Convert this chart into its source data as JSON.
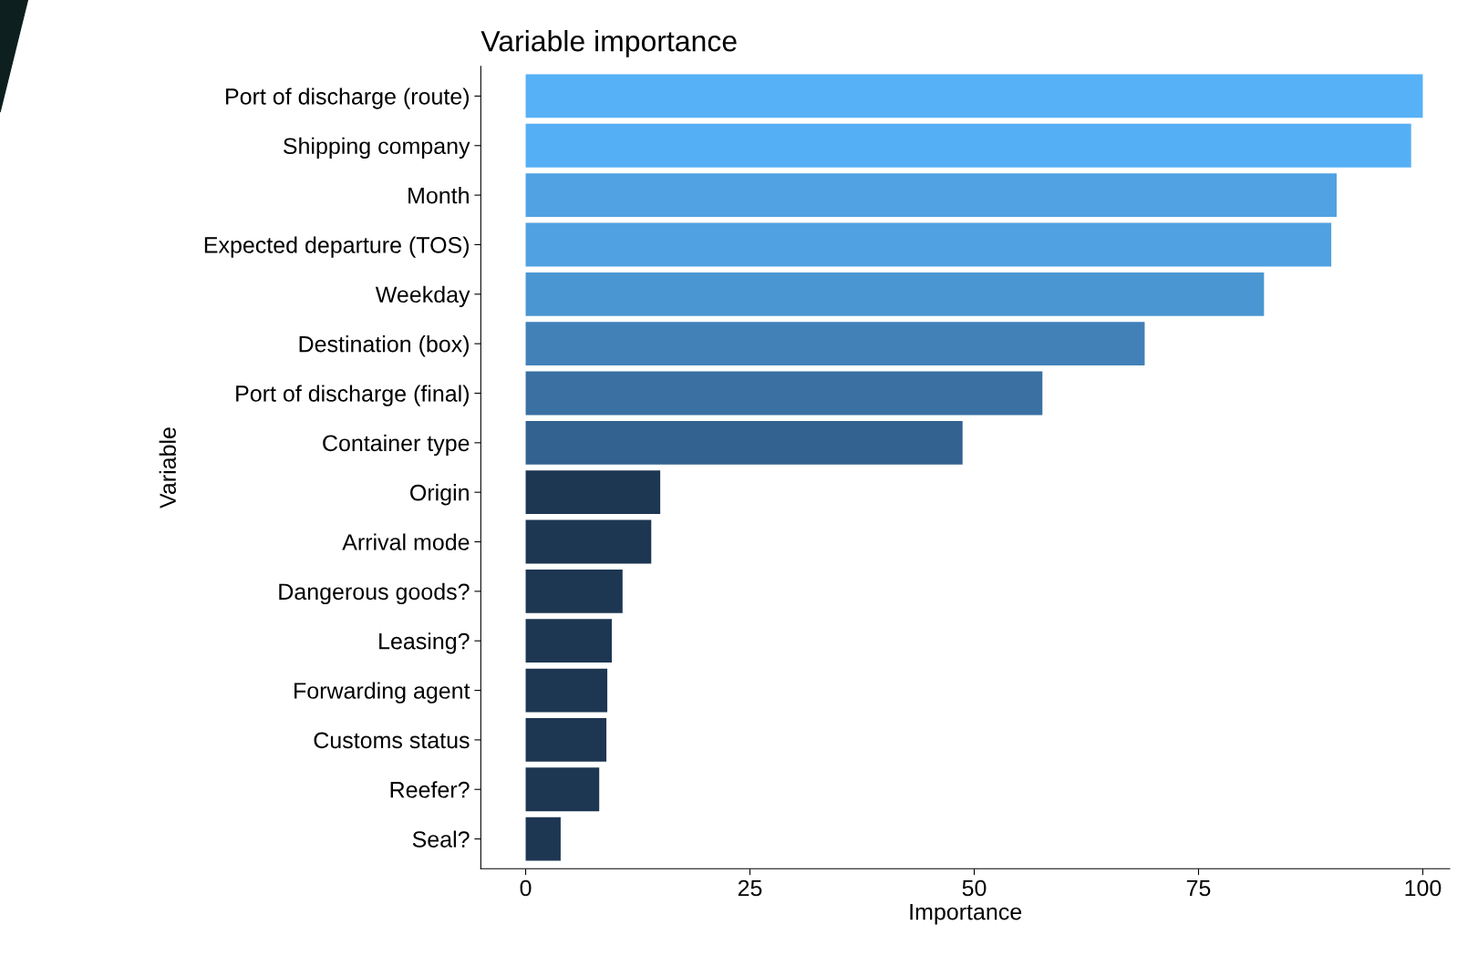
{
  "chart_data": {
    "type": "bar",
    "orientation": "horizontal",
    "title": "Variable importance",
    "xlabel": "Importance",
    "ylabel": "Variable",
    "categories": [
      "Port of discharge (route)",
      "Shipping company",
      "Month",
      "Expected departure (TOS)",
      "Weekday",
      "Destination (box)",
      "Port of discharge (final)",
      "Container type",
      "Origin",
      "Arrival mode",
      "Dangerous goods?",
      "Leasing?",
      "Forwarding agent",
      "Customs status",
      "Reefer?",
      "Seal?"
    ],
    "values": [
      100,
      98.7,
      90.4,
      89.8,
      82.3,
      69.0,
      57.6,
      48.7,
      15.0,
      14.0,
      10.8,
      9.6,
      9.1,
      9.0,
      8.2,
      3.9
    ],
    "colors": [
      "#56b1f7",
      "#55aff5",
      "#50a2e3",
      "#50a1e2",
      "#4a96d2",
      "#4181b8",
      "#3a70a2",
      "#336290",
      "#1d3652",
      "#1d3652",
      "#1d3652",
      "#1d3652",
      "#1d3652",
      "#1d3652",
      "#1d3652",
      "#1d3652"
    ],
    "xlim": [
      -5,
      103
    ],
    "xticks": [
      0,
      25,
      50,
      75,
      100
    ],
    "grid": false,
    "legend": false
  }
}
